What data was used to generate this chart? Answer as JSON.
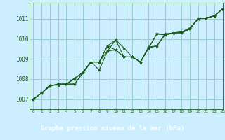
{
  "xlabel": "Graphe pression niveau de la mer (hPa)",
  "xlim": [
    -0.5,
    23
  ],
  "ylim": [
    1006.5,
    1011.8
  ],
  "yticks": [
    1007,
    1008,
    1009,
    1010,
    1011
  ],
  "xticks": [
    0,
    1,
    2,
    3,
    4,
    5,
    6,
    7,
    8,
    9,
    10,
    11,
    12,
    13,
    14,
    15,
    16,
    17,
    18,
    19,
    20,
    21,
    22,
    23
  ],
  "bg_color": "#cceeff",
  "grid_color": "#99cccc",
  "line_color": "#1a5c1a",
  "footer_bg": "#2d6e2d",
  "footer_text_color": "#ffffff",
  "series": [
    [
      1007.0,
      1007.3,
      1007.7,
      1007.7,
      1007.75,
      1008.05,
      1008.3,
      1008.85,
      1008.85,
      1009.65,
      1009.95,
      1009.55,
      1009.1,
      1008.85,
      1009.6,
      1009.65,
      1010.25,
      1010.3,
      1010.3,
      1010.5,
      1011.0,
      1011.05,
      1011.15,
      1011.5
    ],
    [
      1007.0,
      1007.3,
      1007.65,
      1007.75,
      1007.75,
      1007.75,
      1008.3,
      1008.85,
      1008.45,
      1009.4,
      1009.95,
      1009.1,
      1009.1,
      1008.85,
      1009.55,
      1009.65,
      1010.2,
      1010.3,
      1010.3,
      1010.5,
      1011.0,
      1011.05,
      1011.15,
      1011.5
    ],
    [
      1007.0,
      1007.3,
      1007.65,
      1007.75,
      1007.75,
      1007.75,
      1008.3,
      1008.85,
      1008.85,
      1009.4,
      1009.45,
      1009.1,
      1009.1,
      1008.85,
      1009.55,
      1010.25,
      1010.2,
      1010.3,
      1010.35,
      1010.5,
      1011.0,
      1011.05,
      1011.15,
      1011.5
    ],
    [
      1007.0,
      1007.3,
      1007.65,
      1007.75,
      1007.75,
      1008.0,
      1008.35,
      1008.85,
      1008.85,
      1009.65,
      1009.45,
      1009.1,
      1009.1,
      1008.85,
      1009.55,
      1010.25,
      1010.2,
      1010.3,
      1010.35,
      1010.55,
      1011.0,
      1011.05,
      1011.15,
      1011.5
    ]
  ]
}
